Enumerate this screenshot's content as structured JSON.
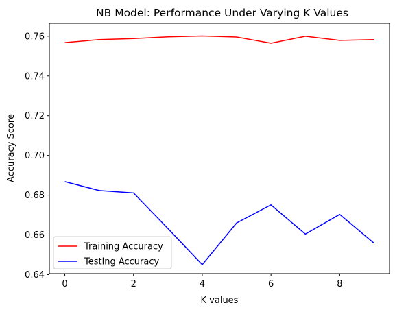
{
  "chart_data": {
    "type": "line",
    "title": "NB Model: Performance Under Varying K Values",
    "xlabel": "K values",
    "ylabel": "Accuracy Score",
    "x": [
      0,
      1,
      2,
      3,
      4,
      5,
      6,
      7,
      8,
      9
    ],
    "xlim": [
      -0.45,
      9.45
    ],
    "ylim": [
      0.6405,
      0.7665
    ],
    "xticks": [
      0,
      2,
      4,
      6,
      8
    ],
    "xtick_labels": [
      "0",
      "2",
      "4",
      "6",
      "8"
    ],
    "yticks": [
      0.64,
      0.66,
      0.68,
      0.7,
      0.72,
      0.74,
      0.76
    ],
    "ytick_labels": [
      "0.64",
      "0.66",
      "0.68",
      "0.70",
      "0.72",
      "0.74",
      "0.76"
    ],
    "grid": false,
    "legend_position": "lower-left",
    "series": [
      {
        "name": "Training Accuracy",
        "color": "#ff0000",
        "values": [
          0.7568,
          0.7583,
          0.7588,
          0.7597,
          0.7601,
          0.7596,
          0.7565,
          0.76,
          0.7579,
          0.7583
        ]
      },
      {
        "name": "Testing Accuracy",
        "color": "#0000ff",
        "values": [
          0.6868,
          0.6823,
          0.6811,
          0.6632,
          0.645,
          0.666,
          0.6751,
          0.6604,
          0.6703,
          0.6558
        ]
      }
    ]
  }
}
